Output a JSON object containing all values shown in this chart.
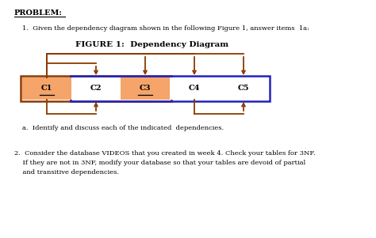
{
  "title": "FIGURE 1:  Dependency Diagram",
  "problem_text": "PROBLEM:",
  "item1_text": "1.  Given the dependency diagram shown in the following Figure 1, answer items  1a:",
  "item_a_text": "a.  Identify and discuss each of the indicated  dependencies.",
  "item2_line1": "2.  Consider the database VIDEOS that you created in week 4. Check your tables for 3NF.",
  "item2_line2": "    If they are not in 3NF, modify your database so that your tables are devoid of partial",
  "item2_line3": "    and transitive dependencies.",
  "columns": [
    "C1",
    "C2",
    "C3",
    "C4",
    "C5"
  ],
  "orange_fill": "#F5A46A",
  "orange_border": "#8B3A00",
  "blue_border": "#2222BB",
  "white_fill": "#FFFFFF",
  "bg_color": "#FFFFFF",
  "arrow_color": "#8B3A00"
}
